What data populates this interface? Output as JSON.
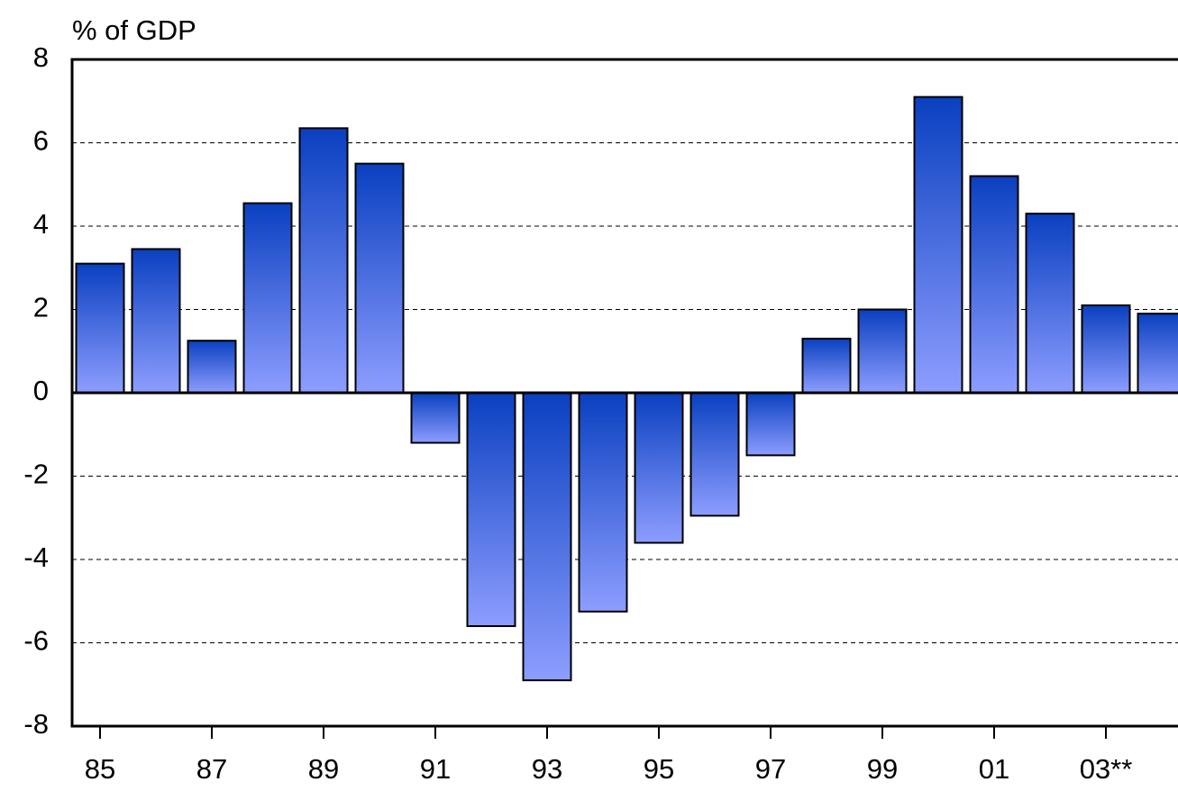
{
  "chart_data": {
    "type": "bar",
    "y_label": "% of GDP",
    "categories": [
      "85",
      null,
      "87",
      null,
      "89",
      null,
      "91",
      null,
      "93",
      null,
      "95",
      null,
      "97",
      null,
      "99",
      null,
      "01",
      null,
      "03**",
      null
    ],
    "values": [
      3.1,
      3.45,
      1.25,
      4.55,
      6.35,
      5.5,
      -1.2,
      -5.6,
      -6.9,
      -5.25,
      -3.6,
      -2.95,
      -1.5,
      1.3,
      2.0,
      7.1,
      5.2,
      4.3,
      2.1,
      1.9
    ],
    "color": "#0a40c0",
    "ylim": [
      -8,
      8
    ],
    "yticks": [
      -8,
      -6,
      -4,
      -2,
      0,
      2,
      4,
      6,
      8
    ],
    "grid": true
  }
}
